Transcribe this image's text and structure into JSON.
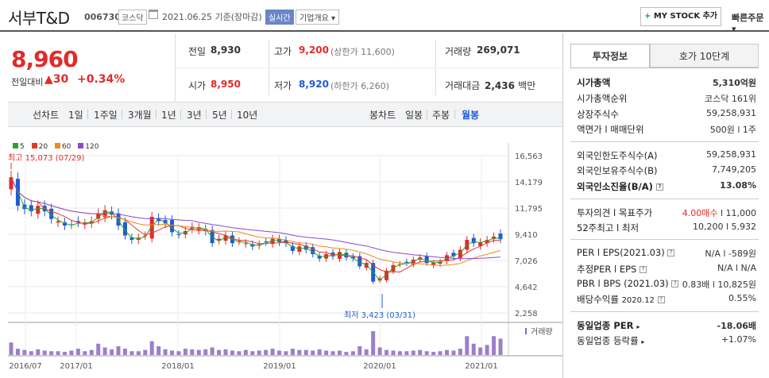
{
  "header": {
    "title": "서부T&D",
    "code": "006730",
    "market": "코스닥",
    "date": "2021.06.25 기준(장마감)",
    "realtime": "실시간",
    "company_info": "기업개요 ▾",
    "my_stock": "MY STOCK 추가",
    "quick_order": "빠른주문 ▾"
  },
  "price": {
    "current": "8,960",
    "change_label": "전일대비",
    "change_value": "30",
    "change_pct": "+0.34%"
  },
  "quote": {
    "prev_close_label": "전일",
    "prev_close": "8,930",
    "high_label": "고가",
    "high": "9,200",
    "upper_limit": "(상한가 11,600)",
    "volume_label": "거래량",
    "volume": "269,071",
    "open_label": "시가",
    "open": "8,950",
    "low_label": "저가",
    "low": "8,920",
    "lower_limit": "(하한가 6,260)",
    "amount_label": "거래대금",
    "amount": "2,436",
    "amount_unit": "백만"
  },
  "tabs": {
    "line_label": "선차트",
    "periods": [
      "1일",
      "1주일",
      "3개월",
      "1년",
      "3년",
      "5년",
      "10년"
    ],
    "candle_label": "봉차트",
    "candles": [
      "일봉",
      "주봉",
      "월봉"
    ]
  },
  "chart_data": {
    "type": "candlestick",
    "legend": [
      {
        "name": "5",
        "color": "#2aa52a"
      },
      {
        "name": "20",
        "color": "#e23a2a"
      },
      {
        "name": "60",
        "color": "#f08a1e"
      },
      {
        "name": "120",
        "color": "#8a4ad0"
      }
    ],
    "yticks": [
      16563,
      14179,
      11795,
      9410,
      7026,
      4642,
      2258
    ],
    "xticks": [
      "2016/07",
      "2017/01",
      "2018/01",
      "2019/01",
      "2020/01",
      "2021/01"
    ],
    "max_label": "최고 15,073 (07/29)",
    "min_label": "최저 3,423 (03/31)",
    "volume_label": "거래량",
    "closes": [
      14600,
      12000,
      11700,
      11500,
      12000,
      11500,
      10800,
      10600,
      10200,
      10300,
      10500,
      10400,
      10600,
      11300,
      11600,
      11200,
      10200,
      9300,
      8900,
      9100,
      9300,
      11000,
      10600,
      10400,
      9600,
      9400,
      9700,
      10100,
      10000,
      9700,
      8600,
      9000,
      9300,
      8600,
      8800,
      8600,
      8300,
      8500,
      8700,
      9000,
      8700,
      8600,
      7900,
      8300,
      8000,
      7600,
      7200,
      7600,
      7400,
      7800,
      7300,
      7200,
      6500,
      6800,
      5100,
      5400,
      6100,
      6600,
      6700,
      6800,
      7100,
      7300,
      6800,
      6800,
      6900,
      7500,
      7400,
      8000,
      8900,
      8600,
      8700,
      8900,
      9200,
      8960
    ],
    "vol": [
      20,
      10,
      8,
      6,
      9,
      7,
      6,
      6,
      5,
      7,
      10,
      6,
      8,
      18,
      12,
      9,
      14,
      10,
      6,
      6,
      8,
      22,
      14,
      9,
      7,
      6,
      10,
      9,
      8,
      9,
      12,
      8,
      9,
      7,
      6,
      8,
      6,
      7,
      8,
      10,
      7,
      6,
      10,
      8,
      8,
      7,
      9,
      7,
      6,
      7,
      5,
      6,
      14,
      9,
      38,
      12,
      8,
      7,
      6,
      6,
      7,
      8,
      6,
      5,
      6,
      8,
      7,
      10,
      30,
      18,
      12,
      16,
      30,
      26
    ]
  },
  "panel": {
    "tab_invest": "투자정보",
    "tab_orderbook": "호가 10단계",
    "rows1": [
      {
        "label": "시가총액",
        "value": "5,310억원",
        "bold": true
      },
      {
        "label": "시가총액순위",
        "value": "코스닥 161위"
      },
      {
        "label": "상장주식수",
        "value": "59,258,931"
      },
      {
        "label": "액면가 l 매매단위",
        "value": "500원 l 1주"
      }
    ],
    "rows2": [
      {
        "label": "외국인한도주식수(A)",
        "value": "59,258,931"
      },
      {
        "label": "외국인보유주식수(B)",
        "value": "7,749,205"
      },
      {
        "label": "외국인소진율(B/A)",
        "value": "13.08%",
        "bold": true
      }
    ],
    "opinion_label": "투자의견 l 목표주가",
    "opinion_value": "4.00매수",
    "target_price": "l 11,000",
    "week52_label": "52주최고 l 최저",
    "week52_value": "10,200 l 5,932",
    "per_label": "PER l EPS(2021.03)",
    "per_value": "N/A l -589원",
    "est_per_label": "추정PER l EPS",
    "est_per_value": "N/A l N/A",
    "pbr_label": "PBR l BPS (2021.03)",
    "pbr_value": "0.83배 l 10,825원",
    "div_label": "배당수익률",
    "div_date": "2020.12",
    "div_value": "0.55%",
    "ind_per_label": "동일업종 PER",
    "ind_per_value": "-18.06배",
    "ind_rate_label": "동일업종 등락률",
    "ind_rate_value": "+1.07%"
  }
}
